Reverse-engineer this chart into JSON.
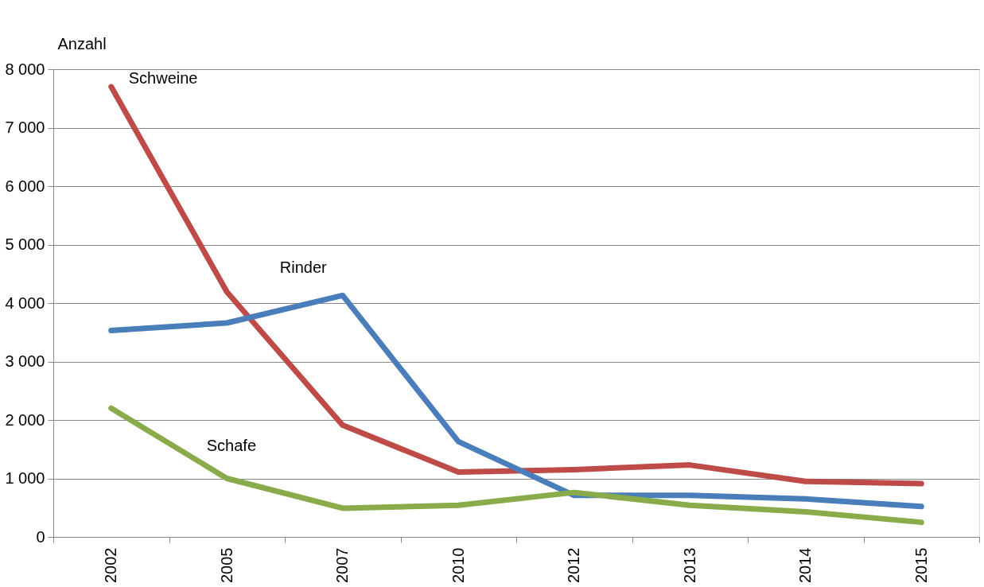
{
  "chart_data": {
    "type": "line",
    "ylabel": "Anzahl",
    "categories": [
      "2002",
      "2005",
      "2007",
      "2010",
      "2012",
      "2013",
      "2014",
      "2015"
    ],
    "series": [
      {
        "name": "Schweine",
        "color": "#be4b48",
        "values": [
          7700,
          4190,
          1910,
          1110,
          1150,
          1230,
          950,
          910
        ]
      },
      {
        "name": "Rinder",
        "color": "#4a7ebb",
        "values": [
          3530,
          3660,
          4130,
          1630,
          710,
          710,
          650,
          520
        ]
      },
      {
        "name": "Schafe",
        "color": "#8aab4a",
        "values": [
          2200,
          1000,
          490,
          540,
          760,
          540,
          430,
          250
        ]
      }
    ],
    "ylim": [
      0,
      8000
    ],
    "yticks": [
      0,
      {
        "value": 1000,
        "label": "1 000"
      },
      {
        "value": 2000,
        "label": "2 000"
      },
      {
        "value": 3000,
        "label": "3 000"
      },
      {
        "value": 4000,
        "label": "4 000"
      },
      {
        "value": 5000,
        "label": "5 000"
      },
      {
        "value": 6000,
        "label": "6 000"
      },
      {
        "value": 7000,
        "label": "7 000"
      },
      {
        "value": 8000,
        "label": "8 000"
      }
    ],
    "grid": "y",
    "legend": false,
    "marker": "none",
    "line_style": "solid"
  }
}
